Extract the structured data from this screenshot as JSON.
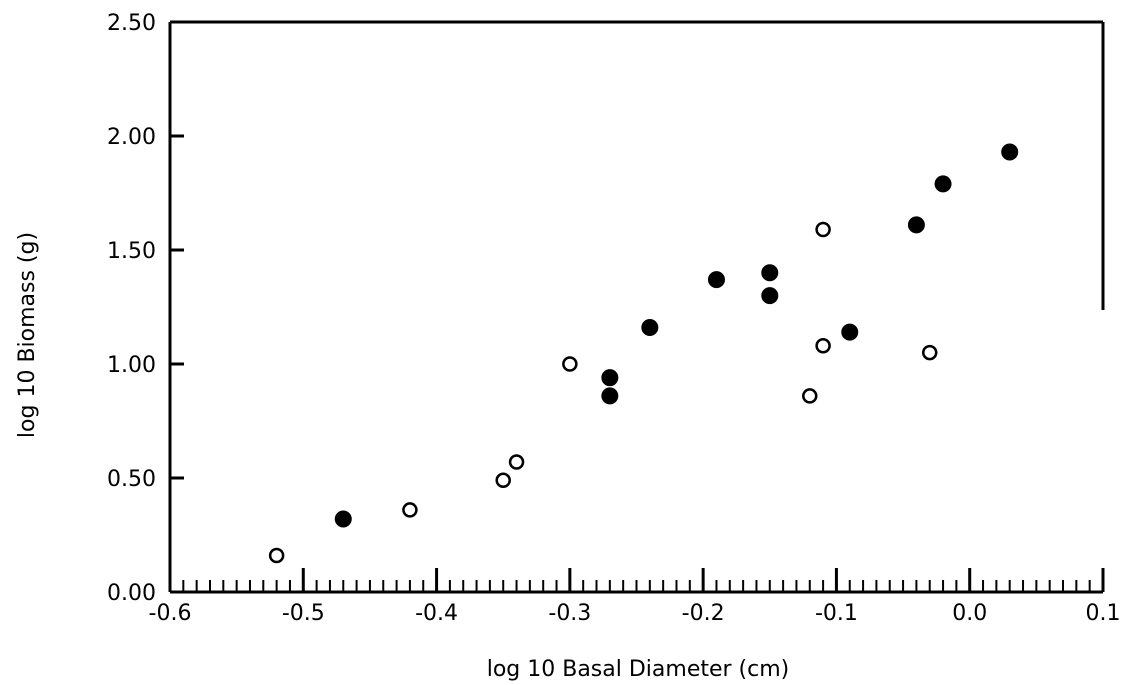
{
  "chart_data": {
    "type": "scatter",
    "title": "",
    "xlabel": "log 10 Basal Diameter (cm)",
    "ylabel": "log 10 Biomass (g)",
    "xlim": [
      -0.6,
      0.1
    ],
    "ylim": [
      0.0,
      2.5
    ],
    "x_tick_labels": [
      "-0.6",
      "-0.5",
      "-0.4",
      "-0.3",
      "-0.2",
      "-0.1",
      "0.0",
      "0.1"
    ],
    "x_ticks": [
      -0.6,
      -0.5,
      -0.4,
      -0.3,
      -0.2,
      -0.1,
      0.0,
      0.1
    ],
    "y_tick_labels": [
      "0.00",
      "0.50",
      "1.00",
      "1.50",
      "2.00",
      "2.50"
    ],
    "y_ticks": [
      0.0,
      0.5,
      1.0,
      1.5,
      2.0,
      2.5
    ],
    "minor_x_tick_step": 0.01,
    "grid": false,
    "legend": "none",
    "series": [
      {
        "marker": "filled-circle",
        "color": "#000000",
        "points": [
          {
            "x": -0.47,
            "y": 0.32
          },
          {
            "x": -0.27,
            "y": 0.94
          },
          {
            "x": -0.27,
            "y": 0.86
          },
          {
            "x": -0.24,
            "y": 1.16
          },
          {
            "x": -0.19,
            "y": 1.37
          },
          {
            "x": -0.15,
            "y": 1.4
          },
          {
            "x": -0.15,
            "y": 1.3
          },
          {
            "x": -0.09,
            "y": 1.14
          },
          {
            "x": -0.04,
            "y": 1.61
          },
          {
            "x": -0.02,
            "y": 1.79
          },
          {
            "x": 0.03,
            "y": 1.93
          }
        ]
      },
      {
        "marker": "open-circle",
        "color": "#000000",
        "points": [
          {
            "x": -0.52,
            "y": 0.16
          },
          {
            "x": -0.42,
            "y": 0.36
          },
          {
            "x": -0.35,
            "y": 0.49
          },
          {
            "x": -0.34,
            "y": 0.57
          },
          {
            "x": -0.3,
            "y": 1.0
          },
          {
            "x": -0.12,
            "y": 0.86
          },
          {
            "x": -0.11,
            "y": 1.59
          },
          {
            "x": -0.11,
            "y": 1.08
          },
          {
            "x": -0.03,
            "y": 1.05
          }
        ]
      }
    ]
  }
}
